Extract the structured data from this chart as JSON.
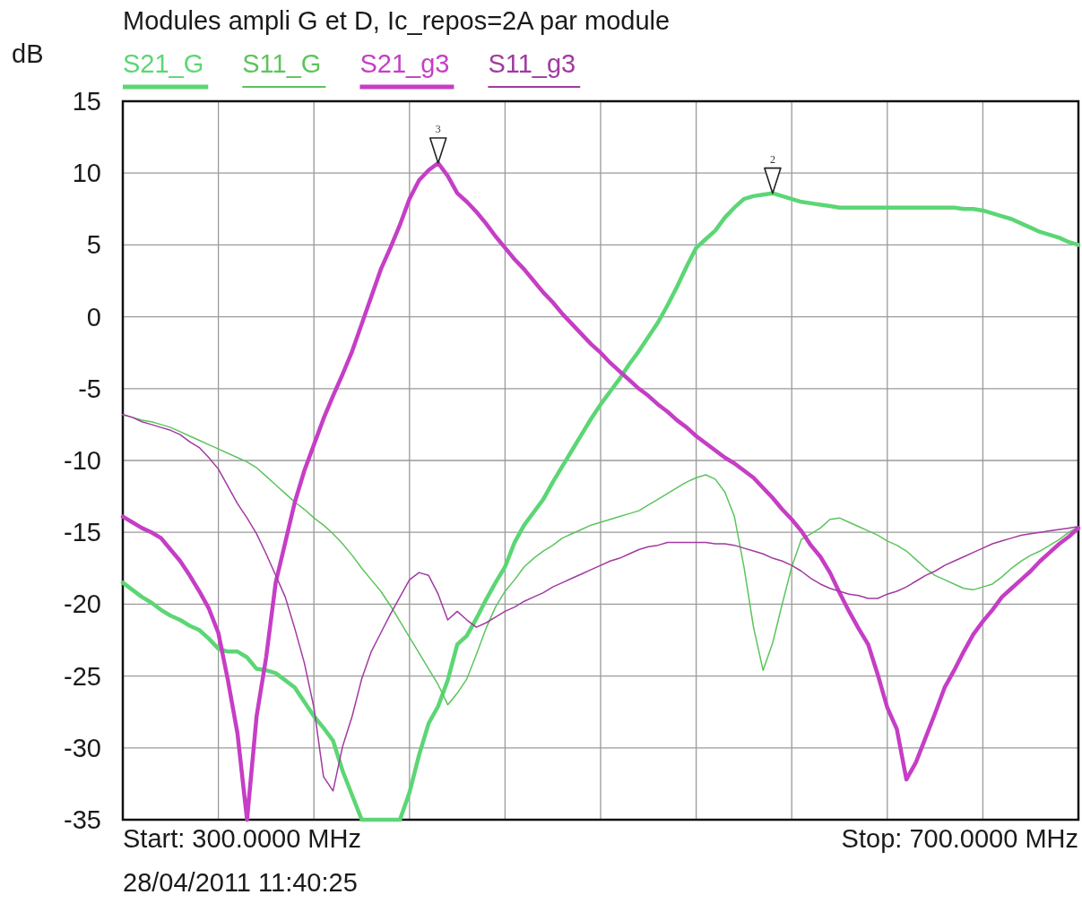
{
  "chart_data": {
    "type": "line",
    "title": "Modules ampli G et D, Ic_repos=2A par module",
    "ylabel": "dB",
    "categories": [
      null,
      null,
      null,
      null,
      null,
      null,
      null,
      null,
      null,
      null,
      null,
      null,
      null,
      null,
      null,
      null,
      null,
      null,
      null,
      null,
      null,
      null,
      null,
      null,
      null,
      null,
      null,
      null,
      null,
      null,
      null,
      null,
      null,
      null,
      null,
      null,
      null,
      null,
      null,
      null,
      null,
      null,
      null,
      null,
      null,
      null,
      null,
      null,
      null,
      null,
      null,
      null,
      null,
      null,
      null,
      null,
      null,
      null,
      null,
      null,
      null,
      null,
      null,
      null,
      null,
      null,
      null,
      null,
      null,
      null,
      null,
      null,
      null,
      null,
      null,
      null,
      null,
      null,
      null,
      null,
      null,
      null,
      null,
      null,
      null,
      null,
      null,
      null,
      null,
      null,
      null,
      null,
      null,
      null,
      null,
      null,
      null,
      null,
      null,
      null,
      null
    ],
    "ylim": [
      -35,
      15
    ],
    "yticks": [
      -35,
      -30,
      -25,
      -20,
      -15,
      -10,
      -5,
      0,
      5,
      10,
      15
    ],
    "tick_labels": "y",
    "grid": true,
    "legend": "top",
    "line_style": "solid",
    "annotations": [
      {
        "text": "3",
        "y": 10.7
      },
      {
        "text": "2",
        "y": 8.6
      },
      "Start: 300.0000 MHz",
      "Stop: 700.0000 MHz",
      "28/04/2011 11:40:25"
    ],
    "series": [
      {
        "name": "S21_G",
        "color": "#5cd675",
        "values": [
          -18.5,
          -19.0,
          -19.5,
          -19.9,
          -20.4,
          -20.8,
          -21.1,
          -21.5,
          -21.8,
          -22.4,
          -23.1,
          -23.3,
          -23.3,
          -23.7,
          -24.5,
          -24.6,
          -24.8,
          -25.3,
          -25.8,
          -26.8,
          -27.8,
          -28.6,
          -29.5,
          -31.6,
          -33.3,
          -35,
          -35,
          -35,
          -35,
          -35,
          -33.1,
          -30.5,
          -28.3,
          -27.1,
          -25.3,
          -22.8,
          -22.2,
          -21.0,
          -19.7,
          -18.5,
          -17.4,
          -15.7,
          -14.5,
          -13.6,
          -12.7,
          -11.5,
          -10.4,
          -9.3,
          -8.2,
          -7.1,
          -6.1,
          -5.2,
          -4.3,
          -3.3,
          -2.4,
          -1.4,
          -0.4,
          0.8,
          2.1,
          3.5,
          4.8,
          5.4,
          6.0,
          6.9,
          7.6,
          8.2,
          8.4,
          8.5,
          8.6,
          8.4,
          8.2,
          8.0,
          7.9,
          7.8,
          7.7,
          7.6,
          7.6,
          7.6,
          7.6,
          7.6,
          7.6,
          7.6,
          7.6,
          7.6,
          7.6,
          7.6,
          7.6,
          7.6,
          7.5,
          7.5,
          7.4,
          7.2,
          7.0,
          6.8,
          6.5,
          6.2,
          5.9,
          5.7,
          5.5,
          5.2,
          5.0
        ]
      },
      {
        "name": "S11_G",
        "color": "#5cc45c",
        "values": [
          -6.8,
          -7.0,
          -7.2,
          -7.3,
          -7.5,
          -7.7,
          -8.0,
          -8.3,
          -8.6,
          -8.9,
          -9.2,
          -9.5,
          -9.8,
          -10.1,
          -10.5,
          -11.1,
          -11.7,
          -12.3,
          -12.9,
          -13.4,
          -14.0,
          -14.5,
          -15.1,
          -15.8,
          -16.6,
          -17.5,
          -18.3,
          -19.1,
          -20.1,
          -21.2,
          -22.3,
          -23.4,
          -24.5,
          -25.6,
          -27.0,
          -26.2,
          -25.2,
          -23.5,
          -21.7,
          -20.2,
          -19.1,
          -18.3,
          -17.4,
          -16.8,
          -16.3,
          -15.9,
          -15.4,
          -15.1,
          -14.8,
          -14.5,
          -14.3,
          -14.1,
          -13.9,
          -13.7,
          -13.5,
          -13.1,
          -12.7,
          -12.3,
          -11.9,
          -11.5,
          -11.2,
          -11.0,
          -11.3,
          -12.2,
          -13.9,
          -17.4,
          -21.6,
          -24.6,
          -22.7,
          -20.0,
          -17.4,
          -15.5,
          -15.1,
          -14.7,
          -14.1,
          -14.0,
          -14.3,
          -14.6,
          -14.9,
          -15.2,
          -15.6,
          -15.9,
          -16.3,
          -16.9,
          -17.5,
          -18.0,
          -18.3,
          -18.6,
          -18.9,
          -19.0,
          -18.8,
          -18.6,
          -18.1,
          -17.5,
          -17.0,
          -16.6,
          -16.3,
          -15.9,
          -15.5,
          -15.0,
          -14.6
        ]
      },
      {
        "name": "S21_g3",
        "color": "#c53ec5",
        "values": [
          -13.9,
          -14.3,
          -14.7,
          -15.0,
          -15.4,
          -16.2,
          -17.0,
          -18.0,
          -19.1,
          -20.3,
          -22.0,
          -25.3,
          -29.0,
          -35,
          -27.8,
          -23.7,
          -18.5,
          -15.7,
          -12.9,
          -10.7,
          -8.9,
          -7.1,
          -5.5,
          -4.0,
          -2.4,
          -0.5,
          1.4,
          3.3,
          4.8,
          6.4,
          8.2,
          9.5,
          10.2,
          10.7,
          9.8,
          8.6,
          8.0,
          7.3,
          6.5,
          5.6,
          4.8,
          4.0,
          3.3,
          2.5,
          1.7,
          1.0,
          0.2,
          -0.5,
          -1.2,
          -1.9,
          -2.5,
          -3.2,
          -3.8,
          -4.4,
          -5.0,
          -5.5,
          -6.1,
          -6.6,
          -7.2,
          -7.7,
          -8.3,
          -8.8,
          -9.3,
          -9.8,
          -10.2,
          -10.7,
          -11.2,
          -11.9,
          -12.6,
          -13.4,
          -14.1,
          -14.9,
          -15.9,
          -16.7,
          -17.8,
          -19.2,
          -20.5,
          -21.7,
          -22.8,
          -24.9,
          -27.2,
          -28.7,
          -32.2,
          -31.0,
          -29.3,
          -27.6,
          -25.8,
          -24.6,
          -23.3,
          -22.1,
          -21.2,
          -20.4,
          -19.5,
          -18.9,
          -18.3,
          -17.7,
          -17.0,
          -16.4,
          -15.8,
          -15.3,
          -14.7
        ]
      },
      {
        "name": "S11_g3",
        "color": "#a13aa1",
        "values": [
          -6.8,
          -7.0,
          -7.3,
          -7.5,
          -7.7,
          -7.9,
          -8.2,
          -8.7,
          -9.1,
          -9.8,
          -10.6,
          -11.8,
          -13.0,
          -14.0,
          -15.1,
          -16.5,
          -18.0,
          -19.5,
          -21.7,
          -24.1,
          -27.2,
          -32.0,
          -33.0,
          -29.9,
          -27.8,
          -25.2,
          -23.3,
          -22.0,
          -20.7,
          -19.5,
          -18.3,
          -17.8,
          -18.0,
          -19.3,
          -21.1,
          -20.5,
          -21.1,
          -21.6,
          -21.3,
          -20.9,
          -20.5,
          -20.2,
          -19.8,
          -19.5,
          -19.2,
          -18.8,
          -18.5,
          -18.2,
          -17.9,
          -17.6,
          -17.3,
          -17.0,
          -16.8,
          -16.5,
          -16.2,
          -16.0,
          -15.9,
          -15.7,
          -15.7,
          -15.7,
          -15.7,
          -15.7,
          -15.8,
          -15.8,
          -15.9,
          -16.1,
          -16.3,
          -16.5,
          -16.8,
          -17.0,
          -17.3,
          -17.7,
          -18.2,
          -18.6,
          -18.9,
          -19.1,
          -19.3,
          -19.4,
          -19.6,
          -19.6,
          -19.3,
          -19.1,
          -18.8,
          -18.4,
          -18.0,
          -17.7,
          -17.3,
          -17.0,
          -16.7,
          -16.4,
          -16.1,
          -15.8,
          -15.6,
          -15.4,
          -15.2,
          -15.1,
          -15.0,
          -14.9,
          -14.8,
          -14.7,
          -14.6
        ]
      }
    ]
  }
}
